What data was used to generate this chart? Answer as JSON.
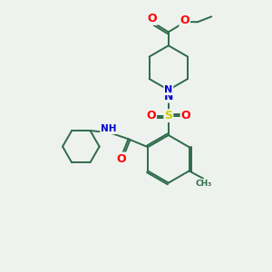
{
  "bg_color": "#eef2ee",
  "bond_color": "#2d6b4a",
  "atom_colors": {
    "O": "#ff0000",
    "N": "#0000cc",
    "S": "#cccc00",
    "C": "#2d6b4a",
    "H": "#5a7a6a"
  },
  "lw": 1.4
}
